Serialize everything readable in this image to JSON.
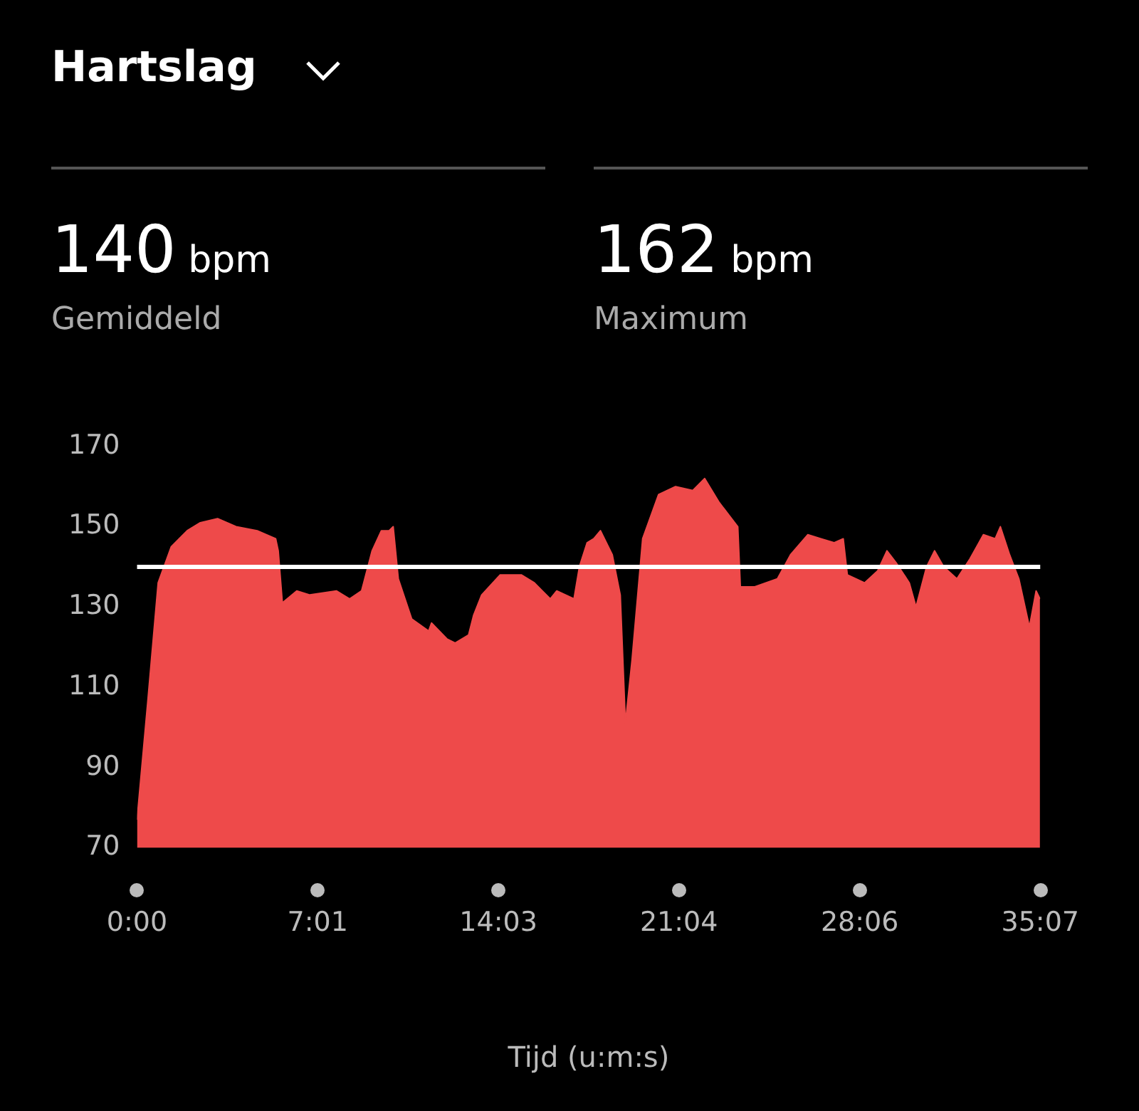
{
  "chart_data": {
    "type": "area",
    "title": "Hartslag",
    "xlabel": "Tijd (u:m:s)",
    "annotations": [
      "140 bpm",
      "Gemiddeld",
      "162 bpm",
      "Maximum"
    ],
    "x": [
      0,
      0.41,
      0.82,
      1.33,
      1.95,
      2.46,
      3.13,
      3.85,
      4.67,
      5.39,
      5.49,
      5.65,
      6.21,
      6.72,
      7.75,
      8.26,
      8.73,
      9.14,
      9.5,
      9.8,
      9.96,
      10.16,
      10.68,
      11.34,
      11.45,
      12.06,
      12.37,
      12.89,
      13.09,
      13.4,
      14.12,
      14.94,
      15.45,
      16.07,
      16.32,
      16.99,
      17.2,
      17.5,
      17.76,
      18.02,
      18.48,
      18.79,
      18.99,
      19.25,
      19.66,
      20.28,
      20.94,
      21.61,
      22.07,
      22.64,
      23.36,
      23.46,
      24.02,
      24.9,
      25.41,
      26.08,
      26.59,
      27.1,
      27.46,
      27.62,
      28.29,
      28.8,
      29.16,
      29.52,
      30.03,
      30.29,
      30.7,
      31.01,
      31.37,
      31.88,
      32.39,
      32.91,
      33.37,
      33.57,
      33.93,
      34.29,
      34.7,
      34.96,
      35.11
    ],
    "series": [
      {
        "color": "#ee4a4a",
        "values": [
          77,
          106,
          136,
          145,
          149,
          151,
          152,
          150,
          149,
          147,
          144,
          131,
          134,
          133,
          134,
          132,
          134,
          144,
          149,
          149,
          150,
          137,
          127,
          124,
          126,
          122,
          121,
          123,
          128,
          133,
          138,
          138,
          136,
          132,
          134,
          132,
          140,
          146,
          147,
          149,
          143,
          133,
          101,
          117,
          147,
          158,
          160,
          159,
          162,
          156,
          150,
          135,
          135,
          137,
          143,
          148,
          147,
          146,
          147,
          138,
          136,
          139,
          144,
          141,
          136,
          130,
          140,
          144,
          140,
          137,
          142,
          148,
          147,
          150,
          143,
          137,
          125,
          134,
          132
        ]
      }
    ],
    "xlim": [
      0,
      35.12
    ],
    "xticks": [
      {
        "value": 0,
        "label": "0:00"
      },
      {
        "value": 7.02,
        "label": "7:01"
      },
      {
        "value": 14.05,
        "label": "14:03"
      },
      {
        "value": 21.07,
        "label": "21:04"
      },
      {
        "value": 28.1,
        "label": "28:06"
      },
      {
        "value": 35.12,
        "label": "35:07"
      }
    ],
    "ylim": [
      70,
      170
    ],
    "yticks": [
      70,
      90,
      110,
      130,
      150,
      170
    ],
    "ref_lines": [
      {
        "axis": "y",
        "value": 140,
        "color": "#ffffff"
      }
    ],
    "grid": false,
    "legend": false
  }
}
